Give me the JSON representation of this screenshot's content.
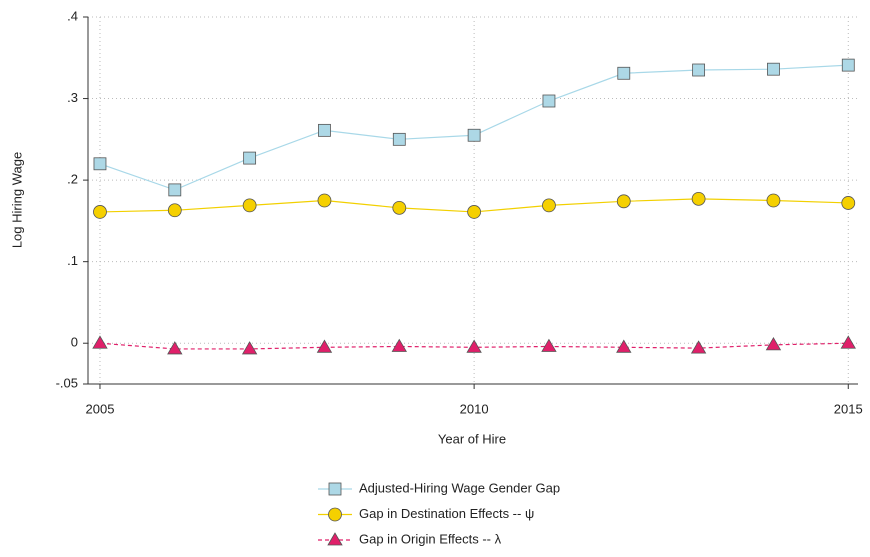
{
  "chart_data": {
    "type": "line",
    "x_label": "Year of Hire",
    "y_label": "Log Hiring Wage",
    "x": [
      2005,
      2006,
      2007,
      2008,
      2009,
      2010,
      2011,
      2012,
      2013,
      2014,
      2015
    ],
    "xlim": [
      2004.84,
      2015.13
    ],
    "xticks": [
      2005,
      2010,
      2015
    ],
    "ylim": [
      -0.05,
      0.4
    ],
    "yticks": [
      {
        "value": -0.05,
        "label": "-.05"
      },
      0,
      {
        "value": 0.1,
        "label": ".1"
      },
      {
        "value": 0.2,
        "label": ".2"
      },
      {
        "value": 0.3,
        "label": ".3"
      },
      {
        "value": 0.4,
        "label": ".4"
      }
    ],
    "grid": true,
    "series": [
      {
        "name": "Adjusted-Hiring Wage Gender Gap",
        "color": "#a8d8e8",
        "marker": "square",
        "marker_color": "#add8e6",
        "dash": false,
        "values": [
          0.22,
          0.188,
          0.227,
          0.261,
          0.25,
          0.255,
          0.297,
          0.331,
          0.335,
          0.336,
          0.341
        ]
      },
      {
        "name": "Gap in Destination Effects -- ψ",
        "color": "#f2d000",
        "marker": "circle",
        "marker_color": "#f5d000",
        "dash": false,
        "values": [
          0.161,
          0.163,
          0.169,
          0.175,
          0.166,
          0.161,
          0.169,
          0.174,
          0.177,
          0.175,
          0.172
        ]
      },
      {
        "name": "Gap in Origin Effects -- λ",
        "color": "#e0206a",
        "marker": "triangle",
        "marker_color": "#e0206a",
        "dash": true,
        "values": [
          0.0,
          -0.007,
          -0.007,
          -0.005,
          -0.004,
          -0.005,
          -0.004,
          -0.005,
          -0.006,
          -0.002,
          0.0
        ]
      }
    ]
  }
}
